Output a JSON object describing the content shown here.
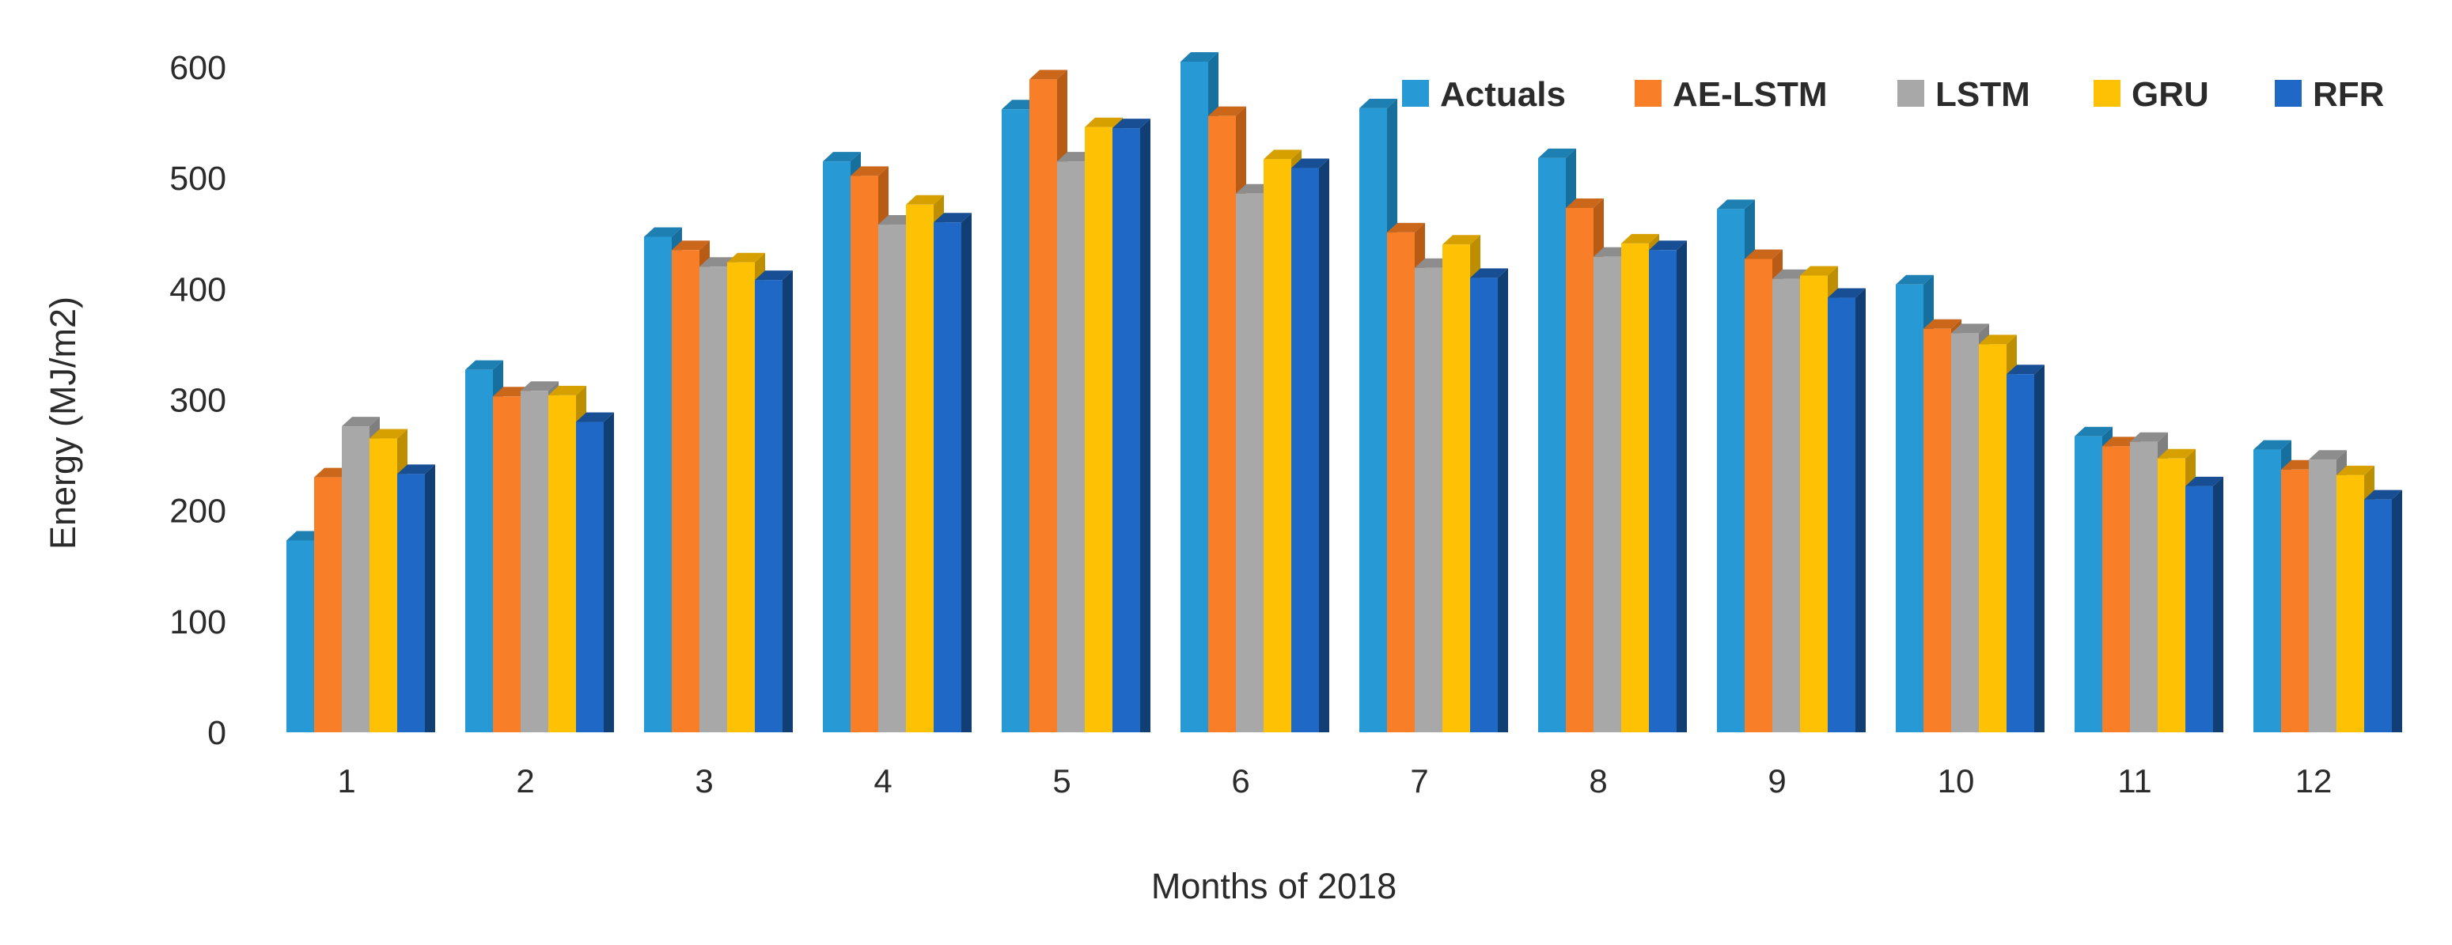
{
  "chart_data": {
    "type": "bar",
    "title": "",
    "xlabel": "Months of 2018",
    "ylabel": "Energy (MJ/m2)",
    "categories": [
      "1",
      "2",
      "3",
      "4",
      "5",
      "6",
      "7",
      "8",
      "9",
      "10",
      "11",
      "12"
    ],
    "y_ticks": [
      "0",
      "100",
      "200",
      "300",
      "400",
      "500",
      "600"
    ],
    "ylim": [
      0,
      600
    ],
    "grid": false,
    "legend_position": "top-right",
    "axis_text_color": "#2b2b2b",
    "background_color": "#ffffff",
    "bar_style": "3d-extruded",
    "series": [
      {
        "name": "Actuals",
        "color": "#2799D5",
        "color_top": "#1E80B2",
        "color_side": "#166F9D",
        "values": [
          173,
          327,
          447,
          515,
          562,
          605,
          563,
          518,
          472,
          404,
          267,
          255
        ]
      },
      {
        "name": "AE-LSTM",
        "color": "#F97E28",
        "color_top": "#CB671B",
        "color_side": "#B85B14",
        "values": [
          230,
          303,
          435,
          502,
          589,
          556,
          451,
          473,
          427,
          364,
          258,
          237
        ]
      },
      {
        "name": "LSTM",
        "color": "#A8A8A8",
        "color_top": "#8D8D8D",
        "color_side": "#7F7F7F",
        "values": [
          276,
          308,
          420,
          458,
          515,
          486,
          419,
          429,
          409,
          360,
          262,
          246
        ]
      },
      {
        "name": "GRU",
        "color": "#FFC103",
        "color_top": "#D6A100",
        "color_side": "#BD8F00",
        "values": [
          265,
          304,
          424,
          476,
          546,
          517,
          440,
          441,
          412,
          350,
          247,
          232
        ]
      },
      {
        "name": "RFR",
        "color": "#1F68C5",
        "color_top": "#174E94",
        "color_side": "#123F73",
        "values": [
          233,
          280,
          408,
          460,
          545,
          509,
          410,
          435,
          392,
          323,
          222,
          210
        ]
      }
    ]
  }
}
